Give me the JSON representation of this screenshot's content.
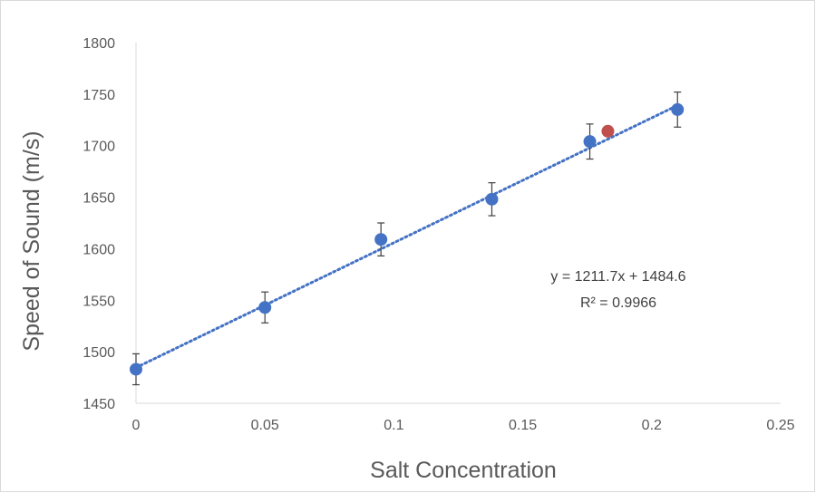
{
  "chart_data": {
    "type": "scatter",
    "title": "",
    "xlabel": "Salt Concentration",
    "ylabel": "Speed of Sound (m/s)",
    "xlim": [
      0,
      0.25
    ],
    "ylim": [
      1450,
      1800
    ],
    "x_ticks": [
      "0",
      "0.05",
      "0.1",
      "0.15",
      "0.2",
      "0.25"
    ],
    "y_ticks": [
      "1450",
      "1500",
      "1550",
      "1600",
      "1650",
      "1700",
      "1750",
      "1800"
    ],
    "grid": false,
    "series": [
      {
        "color": "#4472c4",
        "x": [
          0,
          0.05,
          0.095,
          0.138,
          0.176,
          0.21
        ],
        "y": [
          1483,
          1543,
          1609,
          1648,
          1704,
          1735
        ],
        "error": [
          15,
          15,
          16,
          16,
          17,
          17
        ]
      },
      {
        "color": "#c0504d",
        "x": [
          0.183
        ],
        "y": [
          1714
        ]
      }
    ],
    "trendline": {
      "type": "linear",
      "slope": 1211.7,
      "intercept": 1484.6,
      "x_range": [
        0,
        0.21
      ],
      "color": "#4472c4",
      "style": "dotted",
      "equation_label": "y = 1211.7x + 1484.6",
      "r2_label": "R² = 0.9966"
    }
  }
}
